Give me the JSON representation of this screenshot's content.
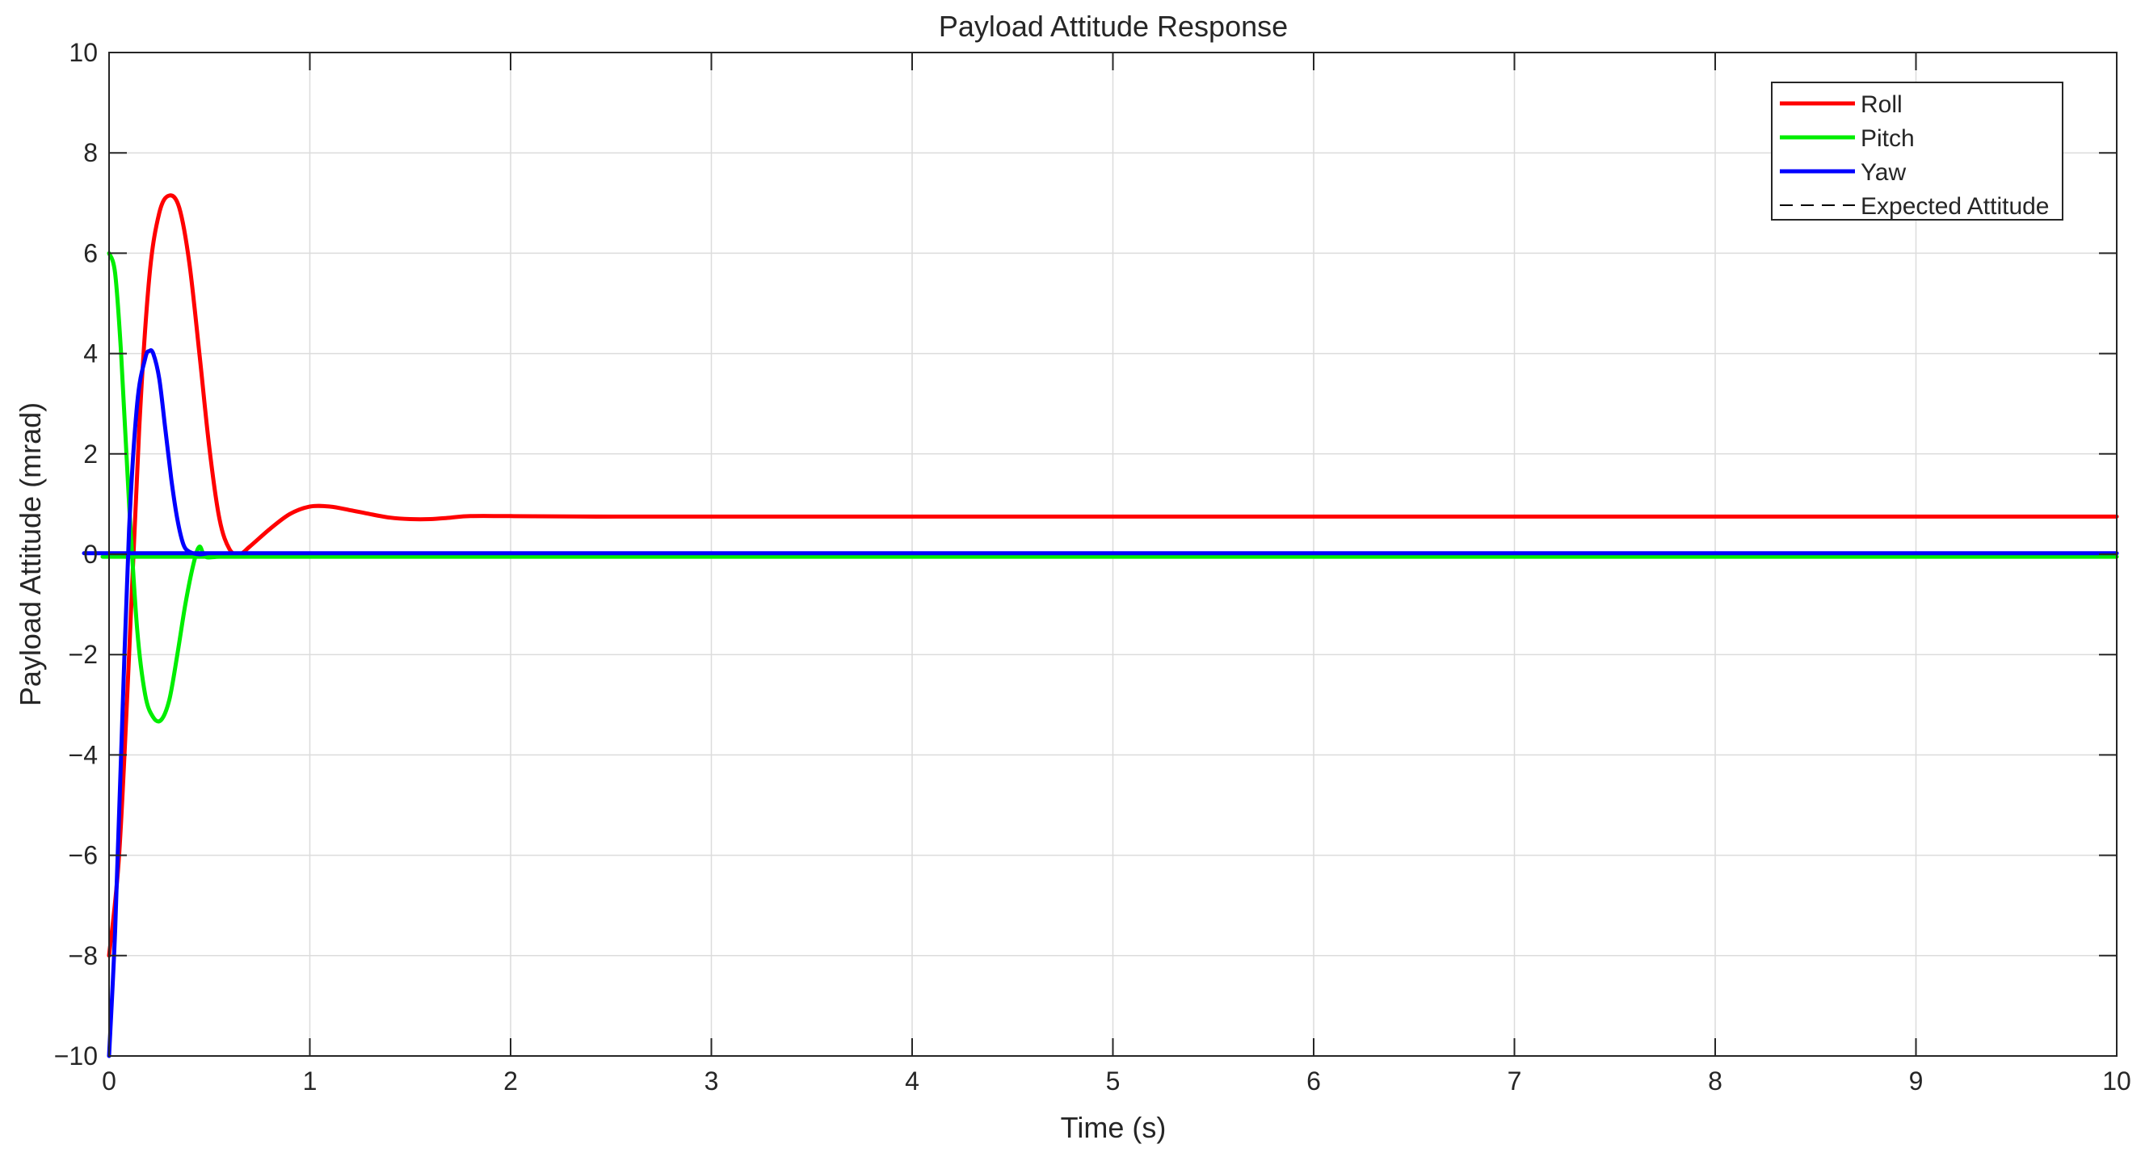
{
  "chart_data": {
    "type": "line",
    "title": "Payload Attitude Response",
    "xlabel": "Time (s)",
    "ylabel": "Payload Attitude (mrad)",
    "xlim": [
      0,
      10
    ],
    "ylim": [
      -10,
      10
    ],
    "xticks": [
      0,
      1,
      2,
      3,
      4,
      5,
      6,
      7,
      8,
      9,
      10
    ],
    "yticks": [
      -10,
      -8,
      -6,
      -4,
      -2,
      0,
      2,
      4,
      6,
      8,
      10
    ],
    "xtick_labels": [
      "0",
      "1",
      "2",
      "3",
      "4",
      "5",
      "6",
      "7",
      "8",
      "9",
      "10"
    ],
    "ytick_labels": [
      "−10",
      "−8",
      "−6",
      "−4",
      "−2",
      "0",
      "2",
      "4",
      "6",
      "8",
      "10"
    ],
    "grid": true,
    "legend_position": "top-right",
    "series": [
      {
        "name": "Roll",
        "color": "#ff0000",
        "style": "solid",
        "x": [
          0,
          0.05,
          0.1,
          0.15,
          0.2,
          0.25,
          0.3,
          0.35,
          0.4,
          0.45,
          0.5,
          0.55,
          0.6,
          0.65,
          0.7,
          0.8,
          0.9,
          1.0,
          1.1,
          1.2,
          1.3,
          1.4,
          1.5,
          1.6,
          1.7,
          1.8,
          2.0,
          2.5,
          3,
          10
        ],
        "y": [
          -8,
          -6.0,
          -2.0,
          2.5,
          5.5,
          6.8,
          7.15,
          6.9,
          5.8,
          4.0,
          2.1,
          0.7,
          0.1,
          0.0,
          0.15,
          0.5,
          0.8,
          0.95,
          0.95,
          0.88,
          0.8,
          0.73,
          0.7,
          0.7,
          0.73,
          0.76,
          0.76,
          0.75,
          0.75,
          0.75
        ]
      },
      {
        "name": "Pitch",
        "color": "#00ee00",
        "style": "solid",
        "x": [
          0,
          0.03,
          0.06,
          0.1,
          0.14,
          0.18,
          0.22,
          0.26,
          0.3,
          0.34,
          0.38,
          0.42,
          0.45,
          0.48,
          0.55,
          0.7,
          10
        ],
        "y": [
          6,
          5.6,
          4.0,
          1.0,
          -1.5,
          -2.8,
          -3.25,
          -3.3,
          -2.9,
          -2.0,
          -1.0,
          -0.2,
          0.15,
          -0.05,
          -0.05,
          -0.05,
          -0.05
        ]
      },
      {
        "name": "Yaw",
        "color": "#0000ff",
        "style": "solid",
        "x": [
          0,
          0.03,
          0.06,
          0.1,
          0.14,
          0.18,
          0.2,
          0.22,
          0.25,
          0.28,
          0.31,
          0.34,
          0.37,
          0.4,
          0.45,
          0.5,
          0.6,
          10
        ],
        "y": [
          -10,
          -7.5,
          -4.0,
          0.5,
          3.0,
          3.9,
          4.05,
          4.0,
          3.5,
          2.5,
          1.5,
          0.7,
          0.2,
          0.05,
          0.0,
          0.02,
          0.02,
          0.02
        ]
      },
      {
        "name": "Expected Attitude",
        "color": "#000000",
        "style": "dashed",
        "x": [
          0,
          10
        ],
        "y": [
          0,
          0
        ]
      }
    ]
  }
}
